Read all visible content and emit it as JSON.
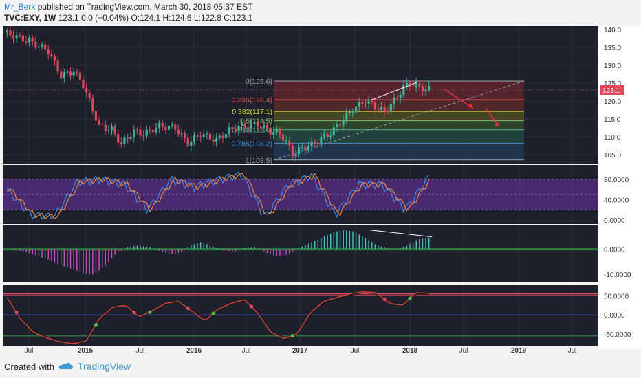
{
  "header": {
    "author": "Mr_Berk",
    "published": "published on TradingView.com, March 30, 2018 05:37 EST",
    "symbol": "TVC:EXY, 1W",
    "quote": "123.1 0.0 (−0.04%) O:124.1 H:124.6 L:122.8 C:123.1"
  },
  "footer": {
    "created_with": "Created with",
    "brand": "TradingView"
  },
  "colors": {
    "up": "#3db39b",
    "down": "#e0485a",
    "panel_bg": "#1e212b",
    "rsi_band": "#5a2e86",
    "osc_pos": "#4ec4c0",
    "osc_neg": "#c84fc8",
    "annotation": "#e8303a",
    "fib_hi": "#8b2a39",
    "fib_mid": "#b5383a"
  },
  "chart_data": [
    {
      "type": "candlestick",
      "title": "TVC:EXY, 1W",
      "x_ticks": [
        "Jul",
        "2015",
        "Jul",
        "2016",
        "Jul",
        "2017",
        "Jul",
        "2018",
        "Jul",
        "2019",
        "Jul"
      ],
      "y_ticks": [
        "140.0",
        "135.0",
        "130.0",
        "125.0",
        "120.0",
        "115.0",
        "110.0",
        "105.0"
      ],
      "ylim": [
        102.5,
        141.0
      ],
      "last_price": "123.1",
      "price_path": [
        [
          0,
          139.2
        ],
        [
          8,
          136.8
        ],
        [
          14,
          134.0
        ],
        [
          18,
          127.0
        ],
        [
          22,
          128.4
        ],
        [
          25,
          124.5
        ],
        [
          30,
          113.0
        ],
        [
          34,
          112.0
        ],
        [
          37,
          108.0
        ],
        [
          41,
          111.5
        ],
        [
          44,
          110.8
        ],
        [
          49,
          113.0
        ],
        [
          54,
          112.5
        ],
        [
          58,
          108.2
        ],
        [
          62,
          110.8
        ],
        [
          67,
          109.0
        ],
        [
          71,
          111.8
        ],
        [
          74,
          112.8
        ],
        [
          80,
          113.5
        ],
        [
          84,
          111.5
        ],
        [
          87,
          111.0
        ],
        [
          89,
          108.5
        ],
        [
          91,
          105.2
        ],
        [
          94,
          106.8
        ],
        [
          97,
          107.8
        ],
        [
          100,
          109.5
        ],
        [
          103,
          111.0
        ],
        [
          106,
          114.0
        ],
        [
          110,
          117.8
        ],
        [
          114,
          120.0
        ],
        [
          117,
          118.5
        ],
        [
          120,
          117.0
        ],
        [
          124,
          121.2
        ],
        [
          126,
          124.0
        ],
        [
          128,
          124.8
        ],
        [
          131,
          123.8
        ],
        [
          133,
          123.3
        ]
      ],
      "fib_levels": [
        {
          "label": "0(125.6)",
          "value": 125.6,
          "color": "#9aa3ad"
        },
        {
          "label": "0.236(120.4)",
          "value": 120.4,
          "color": "#e0505a"
        },
        {
          "label": "0.382(117.1)",
          "value": 117.1,
          "color": "#d8d83a"
        },
        {
          "label": "0.5(114.5)",
          "value": 114.5,
          "color": "#7dc464"
        },
        {
          "label": "0.618(112.0)",
          "value": 112.0,
          "color": "#4fb08a"
        },
        {
          "label": "0.786(108.2)",
          "value": 108.2,
          "color": "#3a8fd6"
        },
        {
          "label": "1(103.5)",
          "value": 103.5,
          "color": "#9aa3ad"
        }
      ]
    },
    {
      "type": "line",
      "series": [
        {
          "values": [
            60,
            10,
            5,
            75,
            80,
            70,
            20,
            80,
            65,
            80,
            90,
            5,
            70,
            88,
            10,
            70,
            70,
            20,
            85
          ]
        },
        {
          "values": [
            55,
            15,
            8,
            68,
            75,
            65,
            25,
            75,
            60,
            75,
            85,
            8,
            66,
            84,
            14,
            66,
            66,
            25,
            80
          ]
        }
      ],
      "y_ticks": [
        "80.0000",
        "40.0000",
        "0.0000"
      ],
      "ylim": [
        0,
        100
      ]
    },
    {
      "type": "bar",
      "y_ticks": [
        "0.0000",
        "-10.0000"
      ],
      "ylim": [
        -12,
        8.5
      ],
      "values": [
        0.2,
        -0.5,
        -1.5,
        -3,
        -4.5,
        -6.5,
        -8,
        -9.5,
        -10.2,
        -7,
        -2,
        0.5,
        1.5,
        1,
        -0.5,
        -2,
        -1.5,
        1.5,
        3,
        1,
        -0.5,
        -1,
        0.5,
        0.8,
        -1.5,
        -3,
        -2,
        0.5,
        2.5,
        4.5,
        6.5,
        7.8,
        7.2,
        5,
        2,
        0.5,
        -0.3,
        1.5,
        4,
        4.5
      ]
    },
    {
      "type": "line",
      "series": [
        {
          "values": [
            45,
            -10,
            -45,
            -60,
            -70,
            -75,
            -68,
            -10,
            20,
            25,
            -5,
            10,
            30,
            35,
            10,
            -15,
            15,
            30,
            40,
            5,
            -45,
            -62,
            -50,
            5,
            35,
            45,
            55,
            60,
            58,
            30,
            25,
            58,
            56
          ]
        },
        {
          "values": [
            40,
            -5,
            -40,
            -58,
            -66,
            -72,
            -62,
            -15,
            18,
            22,
            -2,
            8,
            28,
            33,
            12,
            -12,
            12,
            28,
            38,
            8,
            -40,
            -60,
            -52,
            0,
            30,
            42,
            52,
            58,
            56,
            32,
            28,
            55,
            54
          ]
        }
      ],
      "y_ticks": [
        "50.0000",
        "0.0000",
        "-50.0000"
      ],
      "ylim": [
        -75,
        72
      ]
    }
  ]
}
